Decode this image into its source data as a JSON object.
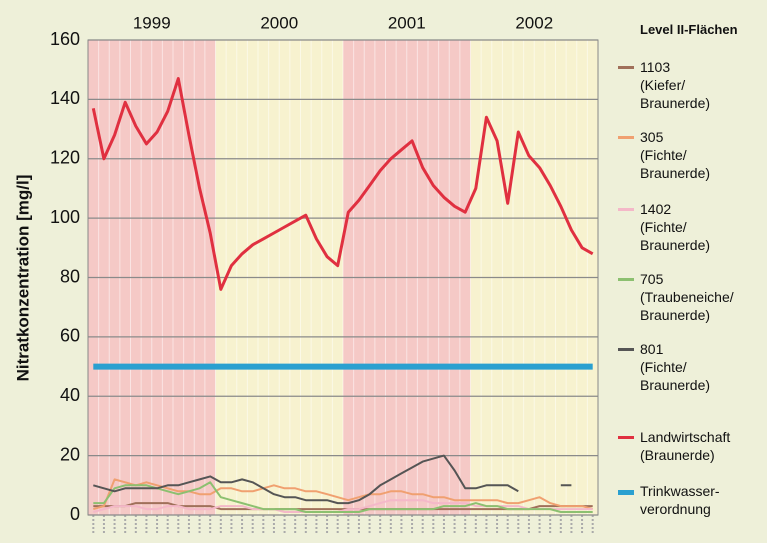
{
  "chart_data": {
    "type": "line",
    "y_label": "Nitratkonzentration [mg/l]",
    "legend_title": "Level II-Flächen",
    "year_bands": [
      {
        "label": "1999",
        "color": "#f5c9c6"
      },
      {
        "label": "2000",
        "color": "#f7f2cf"
      },
      {
        "label": "2001",
        "color": "#f5c9c6"
      },
      {
        "label": "2002",
        "color": "#f7f2cf"
      }
    ],
    "categories": [
      null,
      null,
      null,
      null,
      null,
      null,
      null,
      null,
      null,
      null,
      null,
      null,
      null,
      null,
      null,
      null,
      null,
      null,
      null,
      null,
      null,
      null,
      null,
      null,
      null,
      null,
      null,
      null,
      null,
      null,
      null,
      null,
      null,
      null,
      null,
      null,
      null,
      null,
      null,
      null,
      null,
      null,
      null,
      null,
      null,
      null,
      null,
      null
    ],
    "ylim": [
      0,
      160
    ],
    "yticks": [
      0,
      20,
      40,
      60,
      80,
      100,
      120,
      140,
      160
    ],
    "grid": true,
    "series": [
      {
        "name": "1103\n(Kiefer/\nBraunerde)",
        "color": "#a0705a",
        "values": [
          3,
          3,
          3,
          3,
          4,
          4,
          4,
          4,
          3,
          3,
          3,
          3,
          2,
          2,
          2,
          2,
          2,
          2,
          2,
          2,
          2,
          2,
          2,
          2,
          2,
          2,
          2,
          2,
          2,
          2,
          2,
          2,
          2,
          2,
          2,
          2,
          2,
          2,
          2,
          2,
          2,
          2,
          3,
          3,
          3,
          3,
          3,
          3
        ]
      },
      {
        "name": "305\n(Fichte/\nBraunerde)",
        "color": "#f0a070",
        "values": [
          2,
          3,
          12,
          11,
          10,
          11,
          10,
          9,
          8,
          8,
          7,
          7,
          9,
          9,
          8,
          8,
          9,
          10,
          9,
          9,
          8,
          8,
          7,
          6,
          5,
          6,
          7,
          7,
          8,
          8,
          7,
          7,
          6,
          6,
          5,
          5,
          5,
          5,
          5,
          4,
          4,
          5,
          6,
          4,
          3,
          3,
          3,
          2
        ]
      },
      {
        "name": "1402\n(Fichte/\nBraunerde)",
        "color": "#f4b8c8",
        "values": [
          1,
          2,
          3,
          3,
          3,
          2,
          2,
          3,
          3,
          2,
          2,
          2,
          3,
          3,
          3,
          2,
          2,
          2,
          1,
          1,
          1,
          1,
          1,
          1,
          2,
          2,
          3,
          4,
          5,
          5,
          5,
          5,
          4,
          4,
          4,
          4,
          3,
          3,
          3,
          3,
          3,
          2,
          2,
          2,
          2,
          2,
          2,
          2
        ]
      },
      {
        "name": "705\n(Traubeneiche/\nBraunerde)",
        "color": "#8cc070",
        "values": [
          4,
          4,
          9,
          10,
          10,
          10,
          9,
          8,
          7,
          8,
          9,
          11,
          6,
          5,
          4,
          3,
          2,
          2,
          2,
          2,
          1,
          1,
          1,
          1,
          1,
          1,
          2,
          2,
          2,
          2,
          2,
          2,
          2,
          3,
          3,
          3,
          4,
          3,
          3,
          2,
          2,
          2,
          2,
          2,
          1,
          1,
          1,
          1
        ]
      },
      {
        "name": "801\n(Fichte/\nBraunerde)",
        "color": "#555555",
        "values": [
          10,
          9,
          8,
          9,
          9,
          9,
          9,
          10,
          10,
          11,
          12,
          13,
          11,
          11,
          12,
          11,
          9,
          7,
          6,
          6,
          5,
          5,
          5,
          4,
          4,
          5,
          7,
          10,
          12,
          14,
          16,
          18,
          19,
          20,
          15,
          9,
          9,
          10,
          10,
          10,
          8,
          null,
          null,
          null,
          10,
          10,
          null,
          null
        ]
      },
      {
        "name": "Landwirtschaft\n(Braunerde)",
        "color": "#e03040",
        "width": 3,
        "values": [
          137,
          120,
          128,
          139,
          131,
          125,
          129,
          136,
          147,
          128,
          110,
          95,
          76,
          84,
          88,
          91,
          93,
          95,
          97,
          99,
          101,
          93,
          87,
          84,
          102,
          106,
          111,
          116,
          120,
          123,
          126,
          117,
          111,
          107,
          104,
          102,
          110,
          134,
          126,
          105,
          129,
          121,
          117,
          111,
          104,
          96,
          90,
          88
        ]
      },
      {
        "name": "Trinkwasser-\nverordnung",
        "color": "#2aa0d0",
        "width": 6,
        "values": [
          50,
          50,
          50,
          50,
          50,
          50,
          50,
          50,
          50,
          50,
          50,
          50,
          50,
          50,
          50,
          50,
          50,
          50,
          50,
          50,
          50,
          50,
          50,
          50,
          50,
          50,
          50,
          50,
          50,
          50,
          50,
          50,
          50,
          50,
          50,
          50,
          50,
          50,
          50,
          50,
          50,
          50,
          50,
          50,
          50,
          50,
          50,
          50
        ]
      }
    ]
  }
}
